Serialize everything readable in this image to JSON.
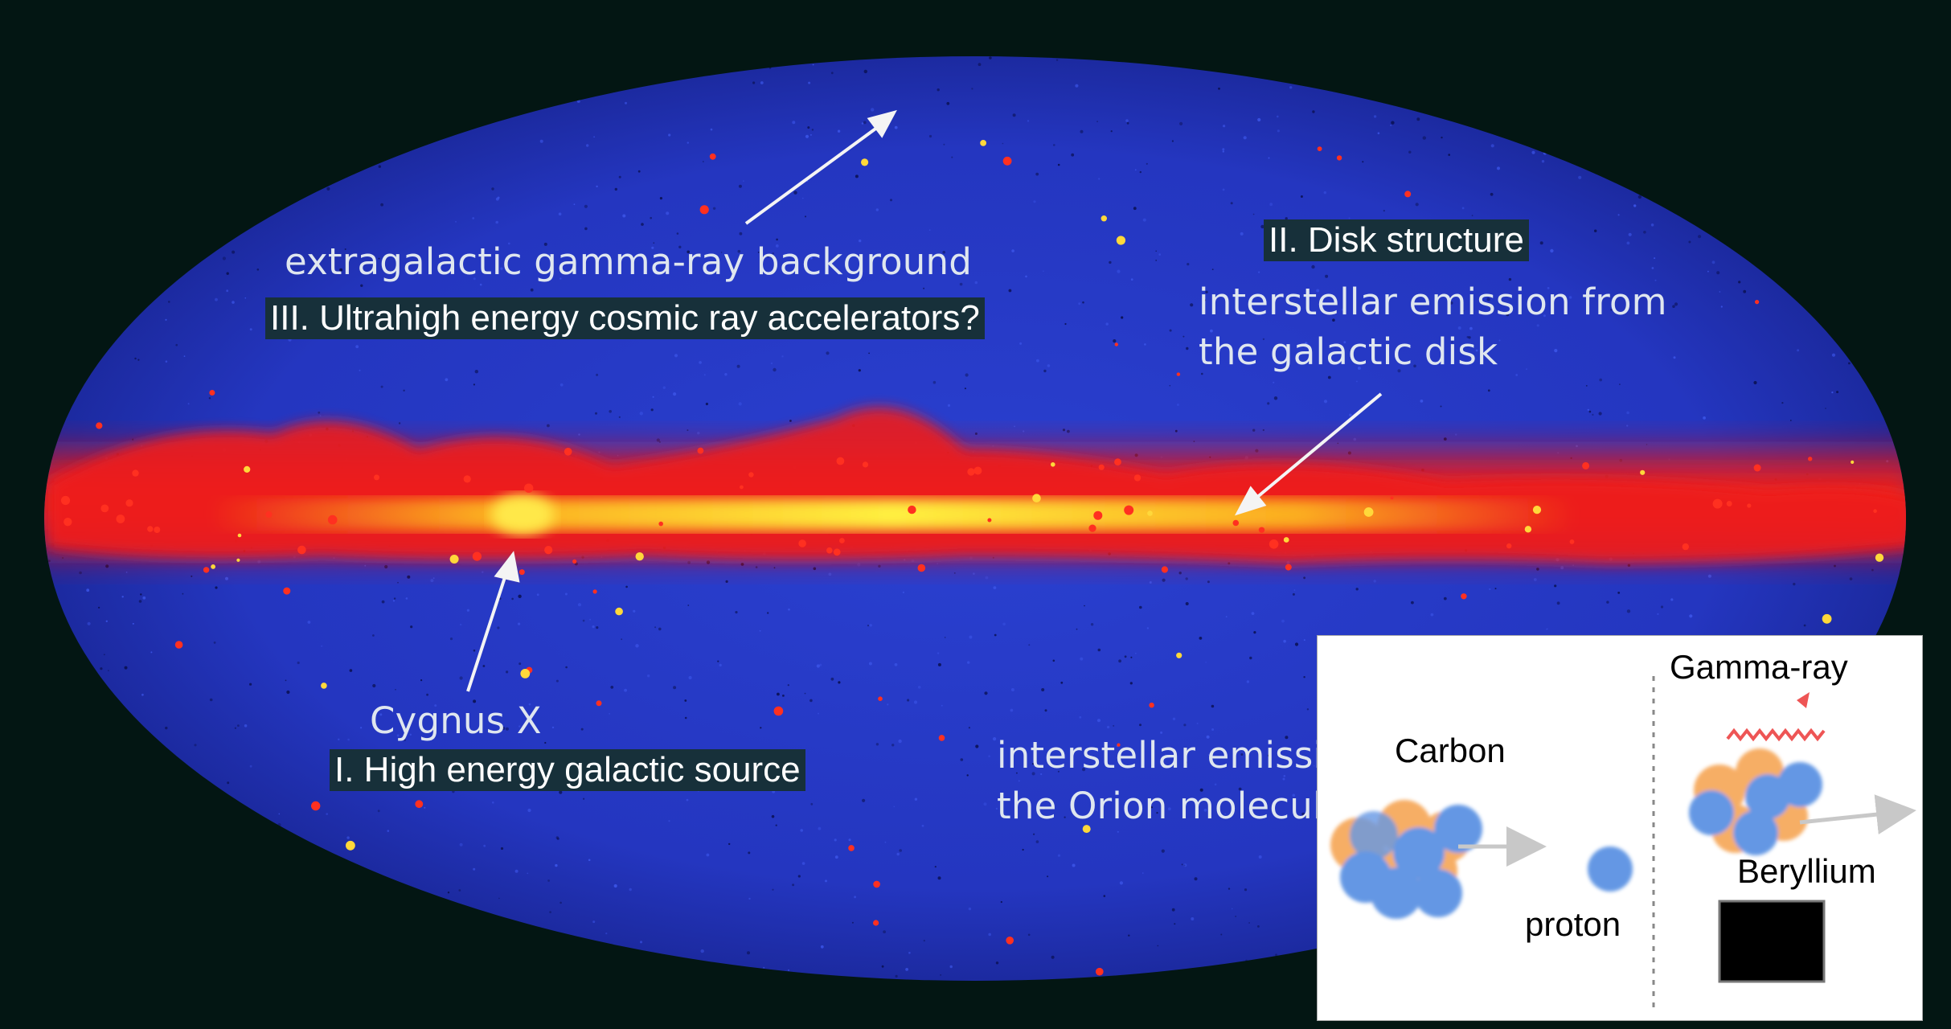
{
  "annotations": {
    "extragalactic": "extragalactic gamma-ray background",
    "section3": "III. Ultrahigh energy cosmic ray accelerators?",
    "section2": "II. Disk structure",
    "disk_line1": "interstellar emission from",
    "disk_line2": "the galactic disk",
    "cygnus": "Cygnus X",
    "section1": "I. High energy galactic source",
    "orion_line1": "interstellar emissi",
    "orion_line2": "the Orion molecula"
  },
  "inset": {
    "carbon": "Carbon",
    "proton": "proton",
    "gamma": "Gamma-ray",
    "beryllium": "Beryllium"
  },
  "colors": {
    "background": "#031613",
    "sky_blue": "#2338c4",
    "plane_red": "#f01818",
    "plane_yellow": "#ffe020",
    "label_box": "#17303a",
    "nucleon_orange": "#f5a04c",
    "nucleon_blue": "#4a86e0"
  }
}
